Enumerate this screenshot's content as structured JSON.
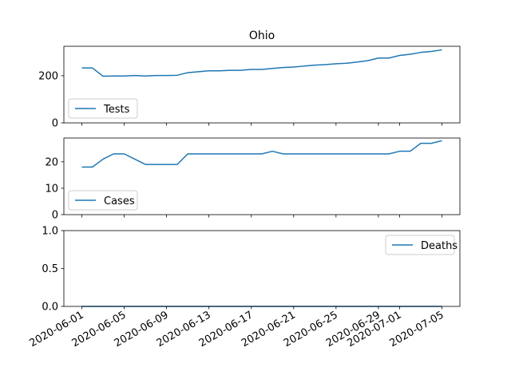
{
  "chart_data": {
    "type": "line",
    "title": "Ohio",
    "x": [
      "2020-06-01",
      "2020-06-02",
      "2020-06-03",
      "2020-06-04",
      "2020-06-05",
      "2020-06-06",
      "2020-06-07",
      "2020-06-08",
      "2020-06-09",
      "2020-06-10",
      "2020-06-11",
      "2020-06-12",
      "2020-06-13",
      "2020-06-14",
      "2020-06-15",
      "2020-06-16",
      "2020-06-17",
      "2020-06-18",
      "2020-06-19",
      "2020-06-20",
      "2020-06-21",
      "2020-06-22",
      "2020-06-23",
      "2020-06-24",
      "2020-06-25",
      "2020-06-26",
      "2020-06-27",
      "2020-06-28",
      "2020-06-29",
      "2020-06-30",
      "2020-07-01",
      "2020-07-02",
      "2020-07-03",
      "2020-07-04",
      "2020-07-05"
    ],
    "x_ticks": [
      "2020-06-01",
      "2020-06-05",
      "2020-06-09",
      "2020-06-13",
      "2020-06-17",
      "2020-06-21",
      "2020-06-25",
      "2020-06-29",
      "2020-07-01",
      "2020-07-05"
    ],
    "color": "#1f77b4",
    "panels": [
      {
        "name": "Tests",
        "legend": "Tests",
        "legend_loc": "lower-left",
        "ylim": [
          0,
          325
        ],
        "yticks": [
          {
            "value": 0,
            "label": "0"
          },
          {
            "value": 200,
            "label": "200"
          }
        ],
        "values": [
          233,
          233,
          198,
          199,
          199,
          201,
          199,
          201,
          201,
          202,
          213,
          217,
          221,
          221,
          223,
          223,
          227,
          227,
          231,
          235,
          237,
          241,
          245,
          247,
          251,
          253,
          258,
          264,
          275,
          275,
          286,
          291,
          299,
          303,
          310
        ]
      },
      {
        "name": "Cases",
        "legend": "Cases",
        "legend_loc": "lower-left",
        "ylim": [
          0,
          29
        ],
        "yticks": [
          {
            "value": 0,
            "label": "0"
          },
          {
            "value": 10,
            "label": "10"
          },
          {
            "value": 20,
            "label": "20"
          }
        ],
        "values": [
          18,
          18,
          21,
          23,
          23,
          21,
          19,
          19,
          19,
          19,
          23,
          23,
          23,
          23,
          23,
          23,
          23,
          23,
          24,
          23,
          23,
          23,
          23,
          23,
          23,
          23,
          23,
          23,
          23,
          23,
          24,
          24,
          27,
          27,
          28
        ]
      },
      {
        "name": "Deaths",
        "legend": "Deaths",
        "legend_loc": "upper-right",
        "ylim": [
          0,
          1
        ],
        "yticks": [
          {
            "value": 0,
            "label": "0.0"
          },
          {
            "value": 0.5,
            "label": "0.5"
          },
          {
            "value": 1,
            "label": "1.0"
          }
        ],
        "values": [
          0,
          0,
          0,
          0,
          0,
          0,
          0,
          0,
          0,
          0,
          0,
          0,
          0,
          0,
          0,
          0,
          0,
          0,
          0,
          0,
          0,
          0,
          0,
          0,
          0,
          0,
          0,
          0,
          0,
          0,
          0,
          0,
          0,
          0,
          0
        ]
      }
    ]
  }
}
